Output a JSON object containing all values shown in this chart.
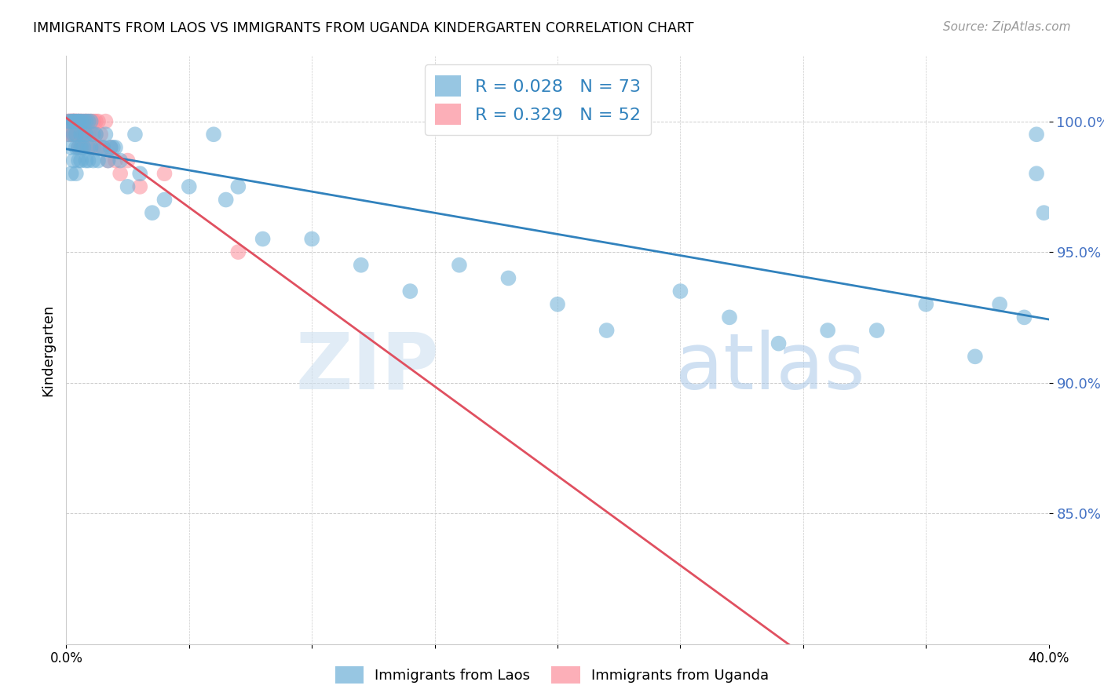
{
  "title": "IMMIGRANTS FROM LAOS VS IMMIGRANTS FROM UGANDA KINDERGARTEN CORRELATION CHART",
  "source": "Source: ZipAtlas.com",
  "ylabel": "Kindergarten",
  "xlim": [
    0.0,
    0.4
  ],
  "ylim": [
    80.0,
    102.5
  ],
  "laos_R": 0.028,
  "laos_N": 73,
  "uganda_R": 0.329,
  "uganda_N": 52,
  "laos_color": "#6baed6",
  "uganda_color": "#fc8d9a",
  "laos_line_color": "#3182bd",
  "uganda_line_color": "#e05060",
  "watermark_zip": "ZIP",
  "watermark_atlas": "atlas",
  "laos_x": [
    0.001,
    0.001,
    0.002,
    0.002,
    0.002,
    0.003,
    0.003,
    0.003,
    0.003,
    0.004,
    0.004,
    0.004,
    0.004,
    0.005,
    0.005,
    0.005,
    0.005,
    0.006,
    0.006,
    0.006,
    0.006,
    0.007,
    0.007,
    0.007,
    0.008,
    0.008,
    0.008,
    0.009,
    0.009,
    0.009,
    0.01,
    0.01,
    0.011,
    0.011,
    0.012,
    0.013,
    0.014,
    0.015,
    0.016,
    0.017,
    0.018,
    0.019,
    0.02,
    0.022,
    0.025,
    0.028,
    0.03,
    0.035,
    0.04,
    0.05,
    0.06,
    0.065,
    0.07,
    0.08,
    0.1,
    0.12,
    0.14,
    0.16,
    0.18,
    0.2,
    0.22,
    0.25,
    0.27,
    0.29,
    0.31,
    0.33,
    0.35,
    0.37,
    0.38,
    0.39,
    0.395,
    0.395,
    0.398
  ],
  "laos_y": [
    99.5,
    100.0,
    100.0,
    99.0,
    98.0,
    100.0,
    99.5,
    100.0,
    98.5,
    100.0,
    99.5,
    99.0,
    98.0,
    100.0,
    100.0,
    99.0,
    98.5,
    100.0,
    99.5,
    99.0,
    98.5,
    100.0,
    99.5,
    99.0,
    100.0,
    99.5,
    98.5,
    100.0,
    99.0,
    98.5,
    100.0,
    99.0,
    99.5,
    98.5,
    99.5,
    98.5,
    99.0,
    99.0,
    99.5,
    98.5,
    99.0,
    99.0,
    99.0,
    98.5,
    97.5,
    99.5,
    98.0,
    96.5,
    97.0,
    97.5,
    99.5,
    97.0,
    97.5,
    95.5,
    95.5,
    94.5,
    93.5,
    94.5,
    94.0,
    93.0,
    92.0,
    93.5,
    92.5,
    91.5,
    92.0,
    92.0,
    93.0,
    91.0,
    93.0,
    92.5,
    99.5,
    98.0,
    96.5
  ],
  "uganda_x": [
    0.001,
    0.001,
    0.001,
    0.002,
    0.002,
    0.002,
    0.002,
    0.003,
    0.003,
    0.003,
    0.003,
    0.003,
    0.004,
    0.004,
    0.004,
    0.004,
    0.005,
    0.005,
    0.005,
    0.005,
    0.006,
    0.006,
    0.006,
    0.006,
    0.007,
    0.007,
    0.007,
    0.008,
    0.008,
    0.008,
    0.009,
    0.009,
    0.01,
    0.01,
    0.01,
    0.011,
    0.011,
    0.012,
    0.012,
    0.013,
    0.013,
    0.014,
    0.015,
    0.016,
    0.017,
    0.018,
    0.02,
    0.022,
    0.025,
    0.03,
    0.04,
    0.07
  ],
  "uganda_y": [
    100.0,
    100.0,
    99.5,
    100.0,
    100.0,
    100.0,
    99.5,
    100.0,
    100.0,
    100.0,
    100.0,
    99.5,
    100.0,
    100.0,
    100.0,
    99.5,
    100.0,
    100.0,
    99.5,
    99.0,
    100.0,
    100.0,
    99.5,
    99.0,
    100.0,
    99.5,
    99.0,
    100.0,
    100.0,
    99.5,
    100.0,
    99.5,
    100.0,
    99.5,
    99.0,
    100.0,
    99.0,
    100.0,
    99.5,
    100.0,
    99.0,
    99.5,
    99.0,
    100.0,
    98.5,
    99.0,
    98.5,
    98.0,
    98.5,
    97.5,
    98.0,
    95.0
  ]
}
